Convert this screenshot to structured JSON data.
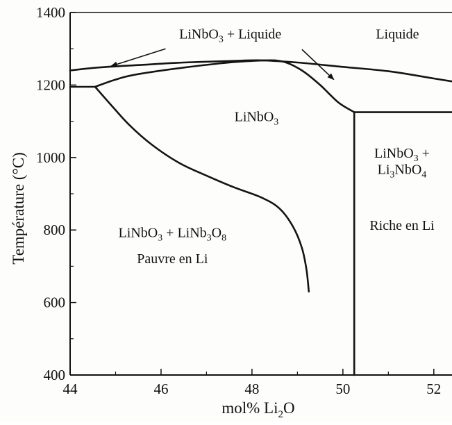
{
  "chart_data": {
    "type": "line",
    "title": "",
    "xlabel": {
      "main": "mol% Li",
      "sub": "2",
      "tail": "O"
    },
    "ylabel": "Température (°C)",
    "xlim": [
      44,
      52.4
    ],
    "ylim": [
      400,
      1400
    ],
    "x_ticks": [
      "44",
      "46",
      "48",
      "50",
      "52"
    ],
    "y_ticks": [
      "400",
      "600",
      "800",
      "1000",
      "1200",
      "1400"
    ],
    "grid": false,
    "series": [
      {
        "points": [
          [
            44.0,
            1240
          ],
          [
            44.6,
            1248
          ],
          [
            45.5,
            1255
          ],
          [
            46.5,
            1262
          ],
          [
            47.5,
            1266
          ],
          [
            48.2,
            1268
          ],
          [
            49.0,
            1262
          ],
          [
            50.0,
            1250
          ],
          [
            51.0,
            1238
          ],
          [
            52.0,
            1218
          ],
          [
            52.4,
            1210
          ]
        ]
      },
      {
        "points": [
          [
            44.55,
            1195
          ],
          [
            45.0,
            1215
          ],
          [
            45.5,
            1230
          ],
          [
            46.5,
            1248
          ],
          [
            47.5,
            1262
          ],
          [
            48.3,
            1268
          ],
          [
            48.7,
            1264
          ],
          [
            49.1,
            1240
          ],
          [
            49.5,
            1200
          ],
          [
            49.9,
            1152
          ],
          [
            50.25,
            1125
          ]
        ]
      },
      {
        "points": [
          [
            50.25,
            1125
          ],
          [
            52.4,
            1125
          ]
        ]
      },
      {
        "points": [
          [
            50.25,
            1125
          ],
          [
            50.25,
            400
          ]
        ]
      },
      {
        "points": [
          [
            44.0,
            1195
          ],
          [
            44.55,
            1195
          ]
        ]
      },
      {
        "points": [
          [
            44.55,
            1195
          ],
          [
            44.9,
            1145
          ],
          [
            45.3,
            1090
          ],
          [
            45.8,
            1035
          ],
          [
            46.4,
            985
          ],
          [
            47.0,
            950
          ],
          [
            47.6,
            918
          ],
          [
            48.2,
            890
          ],
          [
            48.6,
            860
          ],
          [
            48.9,
            810
          ],
          [
            49.1,
            750
          ],
          [
            49.2,
            690
          ],
          [
            49.25,
            630
          ]
        ]
      }
    ],
    "regions": [
      {
        "parts": [
          {
            "t": "LiNbO"
          },
          {
            "t": "3",
            "s": "sub"
          },
          {
            "t": " + Liquide"
          }
        ],
        "x": 46.4,
        "y": 1328,
        "anchor": "start"
      },
      {
        "parts": [
          {
            "t": "Liquide"
          }
        ],
        "x": 51.2,
        "y": 1328,
        "anchor": "middle"
      },
      {
        "parts": [
          {
            "t": "LiNbO"
          },
          {
            "t": "3",
            "s": "sub"
          }
        ],
        "x": 48.1,
        "y": 1100,
        "anchor": "middle"
      },
      {
        "parts": [
          {
            "t": "LiNbO"
          },
          {
            "t": "3",
            "s": "sub"
          },
          {
            "t": " +"
          }
        ],
        "x": 51.3,
        "y": 1000,
        "anchor": "middle"
      },
      {
        "parts": [
          {
            "t": "Li"
          },
          {
            "t": "3",
            "s": "sub"
          },
          {
            "t": "NbO"
          },
          {
            "t": "4",
            "s": "sub"
          }
        ],
        "x": 51.3,
        "y": 955,
        "anchor": "middle"
      },
      {
        "parts": [
          {
            "t": "Riche en Li"
          }
        ],
        "x": 51.3,
        "y": 800,
        "anchor": "middle"
      },
      {
        "parts": [
          {
            "t": "LiNbO"
          },
          {
            "t": "3",
            "s": "sub"
          },
          {
            "t": " + LiNb"
          },
          {
            "t": "3",
            "s": "sub"
          },
          {
            "t": "O"
          },
          {
            "t": "8",
            "s": "sub"
          }
        ],
        "x": 46.25,
        "y": 780,
        "anchor": "middle"
      },
      {
        "parts": [
          {
            "t": "Pauvre en Li"
          }
        ],
        "x": 46.25,
        "y": 708,
        "anchor": "middle"
      }
    ],
    "arrows": [
      {
        "from": [
          46.1,
          1300
        ],
        "to": [
          44.9,
          1252
        ]
      },
      {
        "from": [
          49.1,
          1298
        ],
        "to": [
          49.8,
          1215
        ]
      }
    ]
  }
}
